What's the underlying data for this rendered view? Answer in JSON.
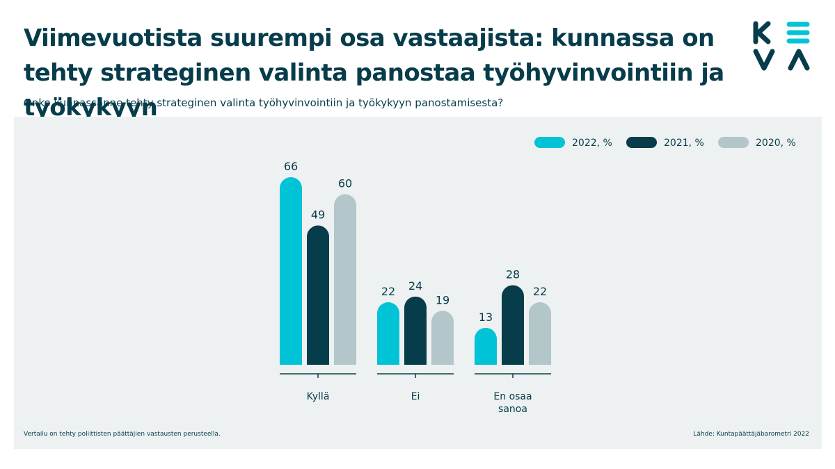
{
  "header": {
    "title": "Viimevuotista suurempi osa vastaajista: kunnassa on tehty strateginen valinta panostaa työhyvinvointiin ja työkykyyn",
    "subtitle": "Onko kunnassanne tehty strateginen valinta työhyvinvointiin ja työkykyyn  panostamisesta?"
  },
  "logo": {
    "icon": "keva-logo",
    "text": "KEVA",
    "colors": {
      "primary": "#073c4b",
      "accent": "#00c4d6"
    }
  },
  "chart_data": {
    "type": "bar",
    "title": "",
    "xlabel": "",
    "ylabel": "",
    "ylim": [
      0,
      66
    ],
    "grid": false,
    "legend_position": "top-right",
    "categories": [
      [
        "Kyllä"
      ],
      [
        "Ei"
      ],
      [
        "En osaa",
        "sanoa"
      ]
    ],
    "series": [
      {
        "name": "2022, %",
        "color": "#00c4d6",
        "values": [
          66,
          22,
          13
        ]
      },
      {
        "name": "2021, %",
        "color": "#073c4b",
        "values": [
          49,
          24,
          28
        ]
      },
      {
        "name": "2020, %",
        "color": "#b3c6c9",
        "values": [
          60,
          19,
          22
        ]
      }
    ]
  },
  "footer": {
    "note": "Vertailu on tehty poliittisten päättäjien vastausten perusteella.",
    "source": "Lähde: Kuntapäättäjäbarometri 2022"
  }
}
